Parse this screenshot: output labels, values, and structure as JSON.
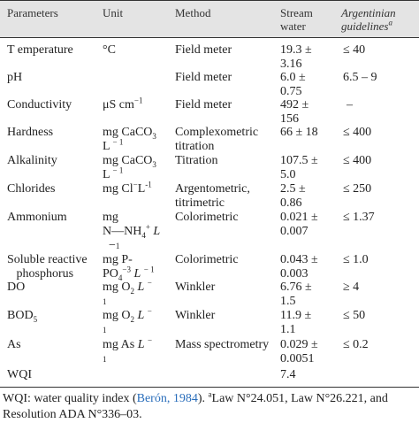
{
  "headers": {
    "parameters": "Parameters",
    "unit": "Unit",
    "method": "Method",
    "stream_water_1": "Stream",
    "stream_water_2": "water",
    "guidelines_1": "Argentinian",
    "guidelines_2": "guidelines",
    "guidelines_sup": "a"
  },
  "rows": [
    {
      "parameter": "T emperature",
      "unit": [
        "°C"
      ],
      "method": [
        "Field meter"
      ],
      "value": [
        "19.3 ±",
        "3.16"
      ],
      "guideline": "≤ 40"
    },
    {
      "parameter": "pH",
      "unit": [
        ""
      ],
      "method": [
        "Field meter"
      ],
      "value": [
        "6.0 ±",
        "0.75"
      ],
      "guideline": "6.5 – 9"
    },
    {
      "parameter": "Conductivity",
      "unit": [
        "μS cm",
        "−1"
      ],
      "method": [
        "Field meter"
      ],
      "value": [
        "492 ±",
        "156"
      ],
      "guideline": "–"
    },
    {
      "parameter": "Hardness",
      "unit": [
        "mg CaCO",
        "3",
        "L",
        "− 1"
      ],
      "method": [
        "Complexometric",
        "titration"
      ],
      "value": [
        "66 ± 18"
      ],
      "guideline": "≤ 400"
    },
    {
      "parameter": "Alkalinity",
      "unit": [
        "mg CaCO",
        "3",
        "L",
        "− 1"
      ],
      "method": [
        "Titration"
      ],
      "value": [
        "107.5 ±",
        "5.0"
      ],
      "guideline": "≤ 400"
    },
    {
      "parameter": "Chlorides",
      "unit": [
        "mg Cl",
        "−",
        "L",
        "-1"
      ],
      "method": [
        "Argentometric,",
        "titrimetric"
      ],
      "value": [
        "2.5 ±",
        "0.86"
      ],
      "guideline": "≤ 250"
    },
    {
      "parameter": "Ammonium",
      "unit": [
        "mg",
        "N—NH",
        "4",
        "+",
        "L",
        "−",
        "1"
      ],
      "method": [
        "Colorimetric"
      ],
      "value": [
        "0.021 ±",
        "0.007"
      ],
      "guideline": "≤ 1.37"
    },
    {
      "parameter": [
        "Soluble reactive",
        "phosphorus"
      ],
      "unit": [
        "mg P-",
        "PO",
        "4",
        "−3",
        "L",
        "− 1"
      ],
      "method": [
        "Colorimetric"
      ],
      "value": [
        "0.043 ±",
        "0.003"
      ],
      "guideline": "≤ 1.0"
    },
    {
      "parameter": "DO",
      "unit": [
        "mg O",
        "2",
        "L",
        "−",
        "1"
      ],
      "method": [
        "Winkler"
      ],
      "value": [
        "6.76 ±",
        "1.5"
      ],
      "guideline": "≥ 4"
    },
    {
      "parameter": [
        "BOD",
        "5"
      ],
      "unit": [
        "mg O",
        "2",
        "L",
        "−",
        "1"
      ],
      "method": [
        "Winkler"
      ],
      "value": [
        "11.9 ±",
        "1.1"
      ],
      "guideline": "≤ 50"
    },
    {
      "parameter": "As",
      "unit": [
        "mg As",
        "L",
        "−",
        "1"
      ],
      "method": [
        "Mass spectrometry"
      ],
      "value": [
        "0.029 ±",
        "0.0051"
      ],
      "guideline": "≤ 0.2"
    },
    {
      "parameter": "WQI",
      "unit": [
        ""
      ],
      "method": [
        ""
      ],
      "value": [
        "7.4"
      ],
      "guideline": ""
    }
  ],
  "footnote": {
    "prefix": "WQI: water quality index (",
    "citation": "Berón, 1984",
    "after_citation": "). ",
    "sup": "a",
    "law1": "Law N°24.051, Law N°26.221, and",
    "law2": "Resolution ADA N°336–03."
  }
}
